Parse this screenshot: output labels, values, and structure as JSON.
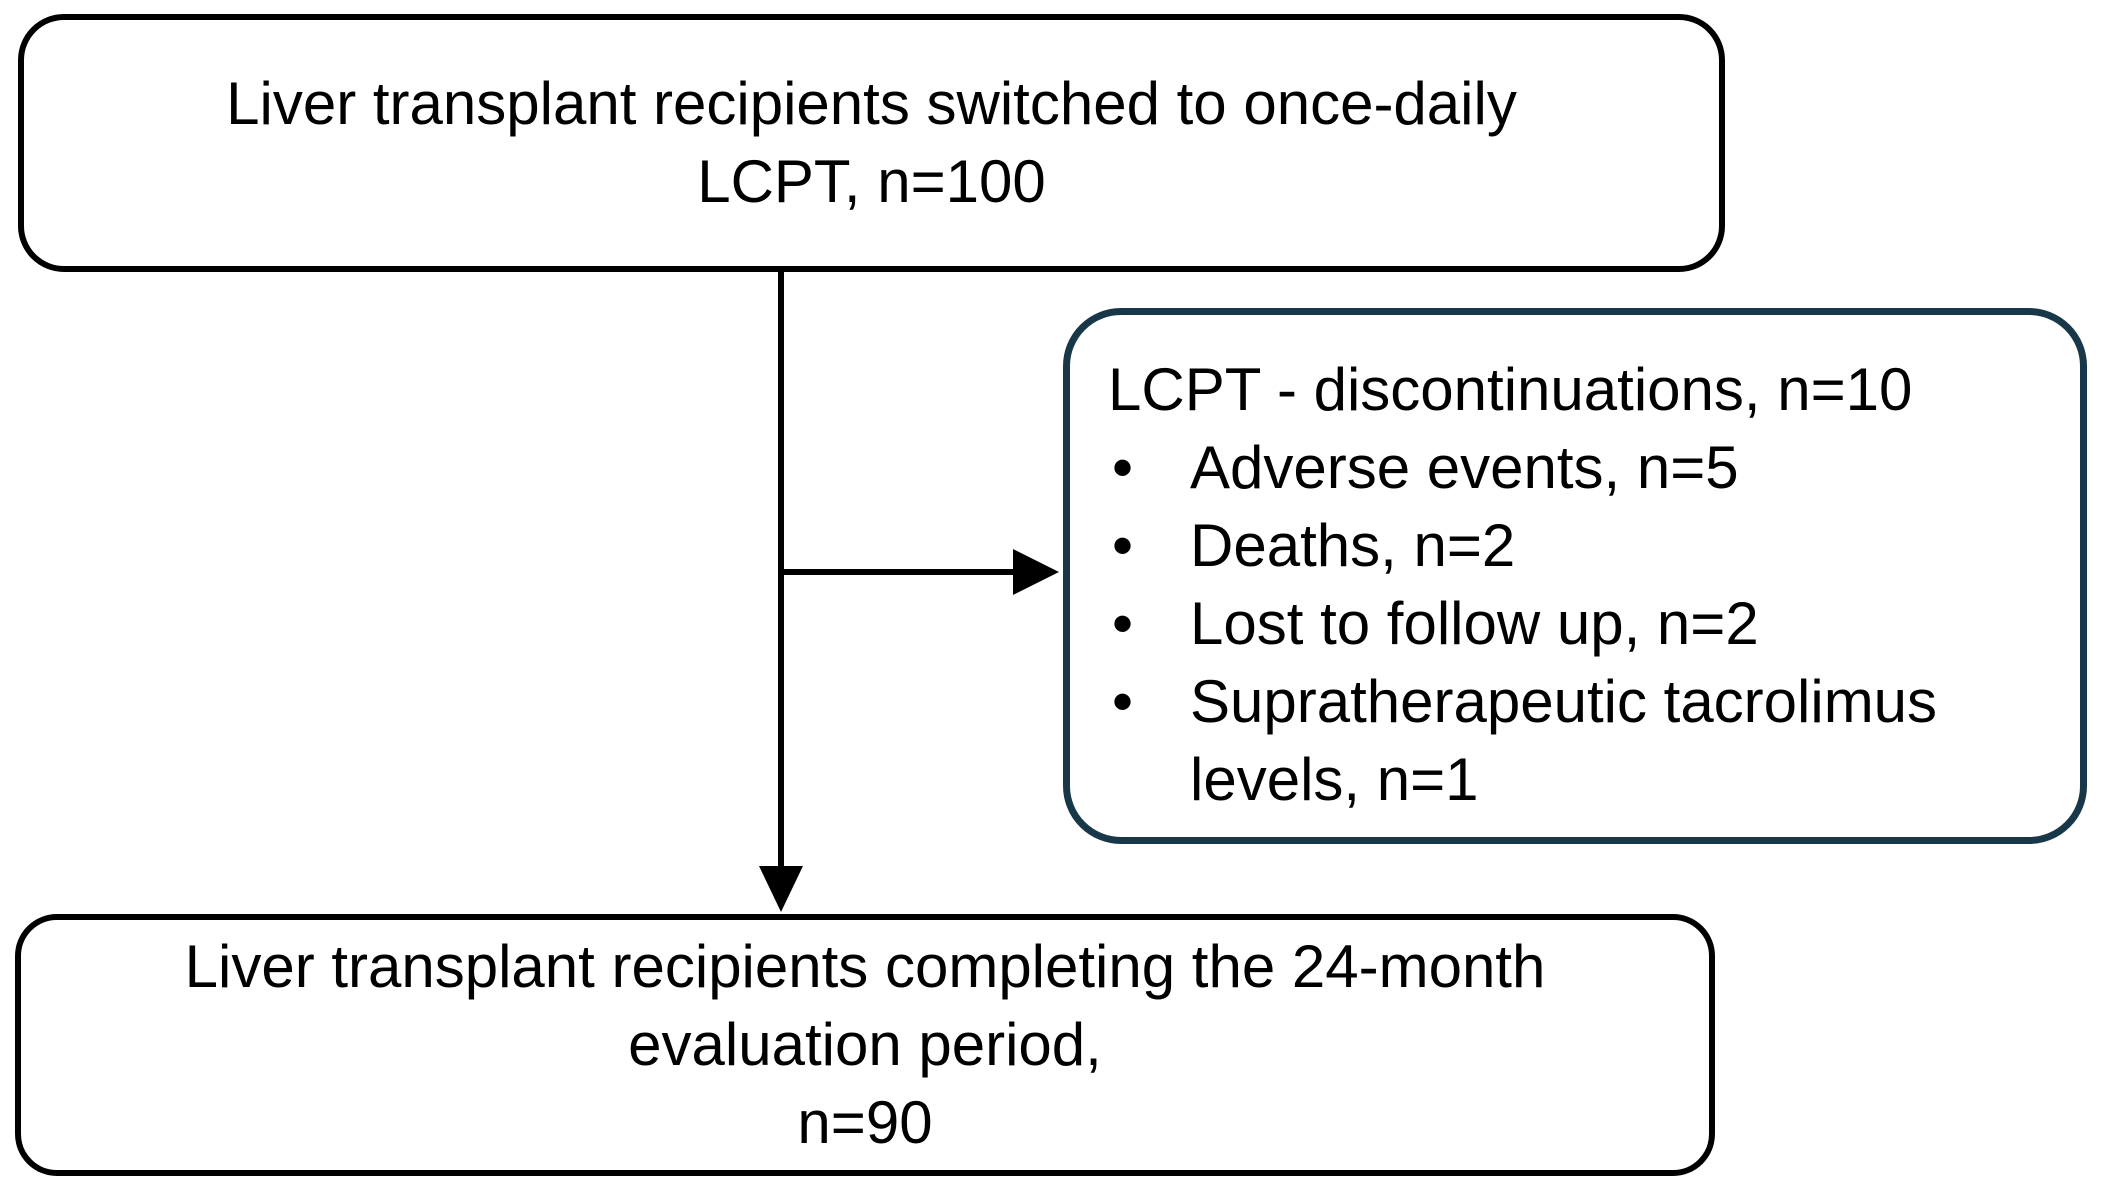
{
  "diagram": {
    "top_box": {
      "line1": "Liver transplant recipients switched to once-daily",
      "line2": "LCPT, n=100"
    },
    "side_box": {
      "title": "LCPT - discontinuations, n=10",
      "bullet_char": "•",
      "bullets": [
        "Adverse events, n=5",
        "Deaths, n=2",
        "Lost to follow up, n=2",
        "Supratherapeutic tacrolimus levels, n=1"
      ]
    },
    "bottom_box": {
      "line1": "Liver transplant recipients completing the 24-month",
      "line2": "evaluation period,",
      "line3": "n=90"
    },
    "colors": {
      "background": "#ffffff",
      "text": "#000000",
      "box_border": "#000000",
      "side_box_border": "#18384a",
      "connector": "#000000"
    }
  }
}
